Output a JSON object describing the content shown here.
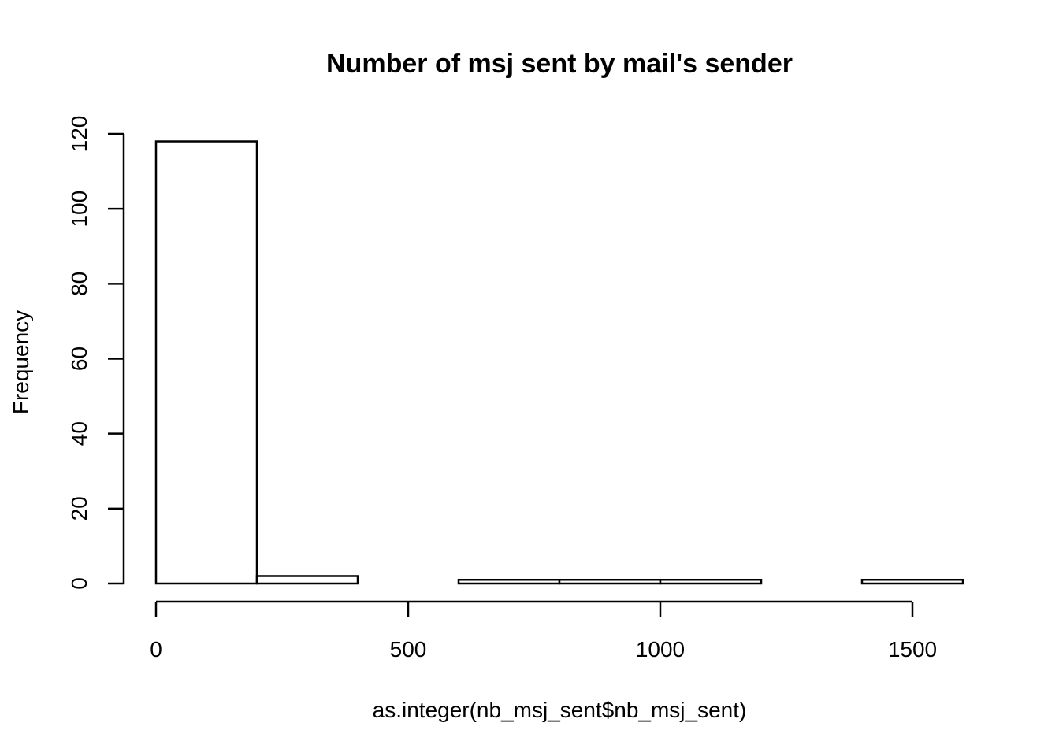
{
  "chart_data": {
    "type": "bar",
    "subtype": "histogram",
    "title": "Number of msj sent by mail's sender",
    "xlabel": "as.integer(nb_msj_sent$nb_msj_sent)",
    "ylabel": "Frequency",
    "bins": [
      {
        "start": 0,
        "end": 200,
        "count": 118
      },
      {
        "start": 200,
        "end": 400,
        "count": 2
      },
      {
        "start": 400,
        "end": 600,
        "count": 0
      },
      {
        "start": 600,
        "end": 800,
        "count": 1
      },
      {
        "start": 800,
        "end": 1000,
        "count": 1
      },
      {
        "start": 1000,
        "end": 1200,
        "count": 1
      },
      {
        "start": 1200,
        "end": 1400,
        "count": 0
      },
      {
        "start": 1400,
        "end": 1600,
        "count": 1
      }
    ],
    "x_ticks": [
      "0",
      "500",
      "1000",
      "1500"
    ],
    "x_tick_values": [
      0,
      500,
      1000,
      1500
    ],
    "y_ticks": [
      "0",
      "20",
      "40",
      "60",
      "80",
      "100",
      "120"
    ],
    "y_tick_values": [
      0,
      20,
      40,
      60,
      80,
      100,
      120
    ],
    "xlim": [
      0,
      1600
    ],
    "ylim": [
      0,
      120
    ],
    "grid": false,
    "legend": "none",
    "bar_fill": "#ffffff",
    "bar_stroke": "#000000"
  }
}
